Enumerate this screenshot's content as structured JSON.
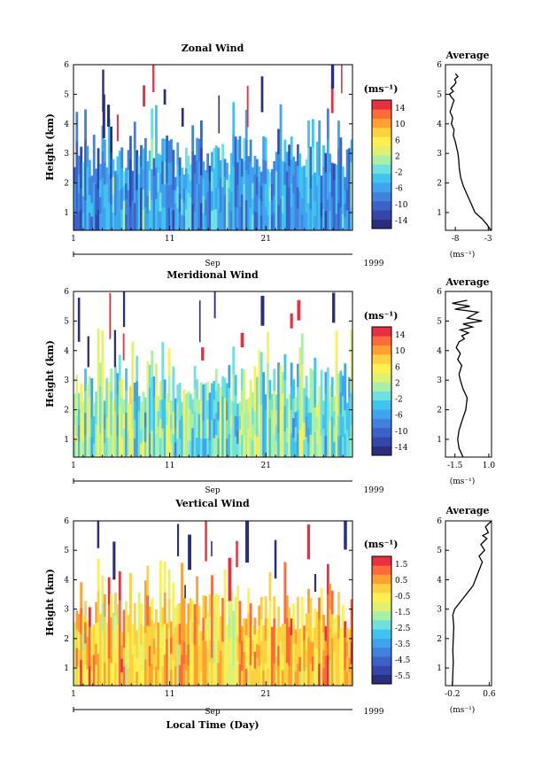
{
  "figure": {
    "x_axis_label": "Local Time (Day)",
    "month_label": "Sep",
    "year_label": "1999",
    "average_title": "Average",
    "y_axis_label": "Height (km)",
    "colorbar_unit": "(ms⁻¹)",
    "average_unit": "(ms⁻¹)"
  },
  "chart_data": [
    {
      "type": "heatmap",
      "title": "Zonal Wind",
      "ylabel": "Height (km)",
      "xlabel": "",
      "x_ticks": [
        "1",
        "11",
        "21"
      ],
      "y_ticks": [
        "1",
        "2",
        "3",
        "4",
        "5",
        "6"
      ],
      "xlim": [
        1,
        30
      ],
      "ylim": [
        0.4,
        6.0
      ],
      "colorbar": {
        "unit": "(ms⁻¹)",
        "ticks": [
          "14",
          "10",
          "6",
          "2",
          "-2",
          "-6",
          "-10",
          "-14"
        ],
        "range": [
          -16,
          16
        ],
        "colors": [
          "#2b2e7a",
          "#3446a8",
          "#3a62c9",
          "#3f82e0",
          "#40a3ee",
          "#3fc4f0",
          "#6fe0e0",
          "#a8f0a8",
          "#e0f070",
          "#fff050",
          "#ffd040",
          "#ffa030",
          "#ff6a3a",
          "#e83040"
        ]
      },
      "summary": "Mostly easterly (negative, blue) below ~3 km; sparse data above ~3.5 km with occasional strong positive streaks near 5-6 km."
    },
    {
      "type": "heatmap",
      "title": "Meridional Wind",
      "ylabel": "Height (km)",
      "xlabel": "",
      "x_ticks": [
        "1",
        "11",
        "21"
      ],
      "y_ticks": [
        "1",
        "2",
        "3",
        "4",
        "5",
        "6"
      ],
      "xlim": [
        1,
        30
      ],
      "ylim": [
        0.4,
        6.0
      ],
      "colorbar": {
        "unit": "(ms⁻¹)",
        "ticks": [
          "14",
          "10",
          "6",
          "2",
          "-2",
          "-6",
          "-10",
          "-14"
        ],
        "range": [
          -16,
          16
        ],
        "colors": [
          "#2b2e7a",
          "#3446a8",
          "#3a62c9",
          "#3f82e0",
          "#40a3ee",
          "#3fc4f0",
          "#6fe0e0",
          "#a8f0a8",
          "#e0f070",
          "#fff050",
          "#ffd040",
          "#ffa030",
          "#ff6a3a",
          "#e83040"
        ]
      },
      "summary": "Weak winds (-2 to 6 m/s, cyan to green) below ~3 km, sparse above."
    },
    {
      "type": "heatmap",
      "title": "Vertical Wind",
      "ylabel": "Height (km)",
      "xlabel": "Local Time (Day)",
      "x_ticks": [
        "1",
        "11",
        "21"
      ],
      "y_ticks": [
        "1",
        "2",
        "3",
        "4",
        "5",
        "6"
      ],
      "xlim": [
        1,
        30
      ],
      "ylim": [
        0.4,
        6.0
      ],
      "colorbar": {
        "unit": "(ms⁻¹)",
        "ticks": [
          "1.5",
          "0.5",
          "-0.5",
          "-1.5",
          "-2.5",
          "-3.5",
          "-4.5",
          "-5.5"
        ],
        "range": [
          -6.0,
          2.0
        ],
        "colors": [
          "#2b2e7a",
          "#3446a8",
          "#3a62c9",
          "#3f82e0",
          "#40a3ee",
          "#3fc4f0",
          "#6fe0e0",
          "#a8f0a8",
          "#e0f070",
          "#fff050",
          "#ffd040",
          "#ffa030",
          "#ff6a3a",
          "#e83040"
        ]
      },
      "summary": "Small positive values (yellow-orange, ~0 to 0.5 m/s) below ~3 km, sparse above."
    },
    {
      "type": "line",
      "title": "Average",
      "xlabel": "(ms⁻¹)",
      "ylabel": "",
      "xlim": [
        -9.5,
        -2.5
      ],
      "ylim": [
        0.4,
        6.0
      ],
      "x_ticks": [
        "-8",
        "-3"
      ],
      "y_ticks": [
        "1",
        "2",
        "3",
        "4",
        "5",
        "6"
      ],
      "x": [
        -2.6,
        -3.2,
        -4.0,
        -5.0,
        -5.6,
        -6.2,
        -6.8,
        -7.2,
        -7.4,
        -7.5,
        -7.6,
        -7.8,
        -8.0,
        -8.3,
        -8.2,
        -8.6,
        -8.4,
        -8.8,
        -8.5,
        -8.2,
        -8.6,
        -8.9,
        -8.3,
        -8.7,
        -8.2,
        -7.9,
        -8.1,
        -7.6,
        -8.0
      ],
      "y": [
        0.4,
        0.6,
        0.8,
        1.0,
        1.3,
        1.6,
        1.9,
        2.2,
        2.5,
        2.8,
        3.0,
        3.2,
        3.4,
        3.6,
        3.8,
        4.0,
        4.2,
        4.4,
        4.6,
        4.8,
        4.9,
        5.0,
        5.1,
        5.2,
        5.3,
        5.4,
        5.5,
        5.6,
        5.7
      ]
    },
    {
      "type": "line",
      "title": "Average",
      "xlabel": "(ms⁻¹)",
      "ylabel": "",
      "xlim": [
        -2.2,
        1.2
      ],
      "ylim": [
        0.4,
        6.0
      ],
      "x_ticks": [
        "-1.5",
        "1.0"
      ],
      "y_ticks": [
        "1",
        "2",
        "3",
        "4",
        "5",
        "6"
      ],
      "x": [
        -0.9,
        -1.2,
        -1.3,
        -1.2,
        -1.0,
        -0.7,
        -0.6,
        -0.9,
        -1.1,
        -1.2,
        -1.0,
        -1.3,
        -1.1,
        -1.4,
        -1.2,
        -0.8,
        -1.0,
        -0.5,
        -1.1,
        -0.2,
        -0.9,
        0.5,
        -0.6,
        0.2,
        -1.5,
        -0.4,
        -1.7,
        -0.6
      ],
      "y": [
        0.4,
        0.7,
        1.0,
        1.3,
        1.6,
        2.0,
        2.4,
        2.7,
        3.0,
        3.2,
        3.5,
        3.7,
        3.9,
        4.1,
        4.3,
        4.4,
        4.5,
        4.6,
        4.7,
        4.8,
        4.9,
        5.0,
        5.1,
        5.3,
        5.4,
        5.5,
        5.6,
        5.7
      ]
    },
    {
      "type": "line",
      "title": "Average",
      "xlabel": "(ms⁻¹)",
      "ylabel": "",
      "xlim": [
        -0.35,
        0.65
      ],
      "ylim": [
        0.4,
        6.0
      ],
      "x_ticks": [
        "-0.2",
        "0.6"
      ],
      "y_ticks": [
        "1",
        "2",
        "3",
        "4",
        "5",
        "6"
      ],
      "x": [
        -0.2,
        -0.19,
        -0.18,
        -0.19,
        -0.18,
        -0.17,
        -0.19,
        -0.15,
        -0.05,
        0.05,
        0.15,
        0.25,
        0.3,
        0.35,
        0.4,
        0.45,
        0.38,
        0.5,
        0.42,
        0.55,
        0.46,
        0.58,
        0.52,
        0.65
      ],
      "y": [
        0.4,
        0.8,
        1.2,
        1.6,
        2.0,
        2.4,
        2.8,
        3.0,
        3.2,
        3.4,
        3.6,
        3.8,
        4.0,
        4.2,
        4.4,
        4.6,
        4.8,
        5.0,
        5.2,
        5.4,
        5.5,
        5.6,
        5.8,
        6.0
      ]
    }
  ]
}
